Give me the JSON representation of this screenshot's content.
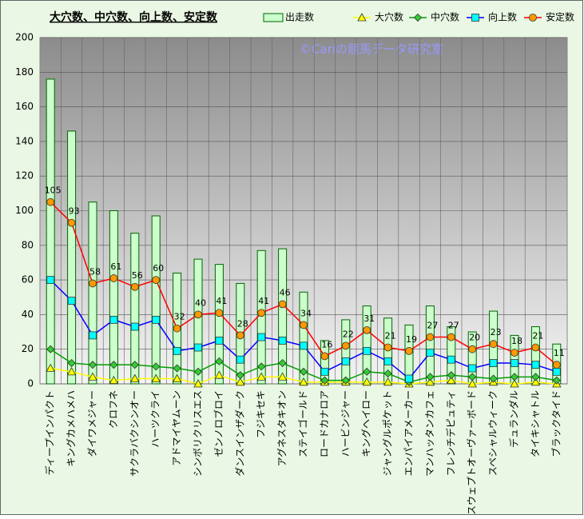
{
  "chart_data": {
    "type": "bar-line",
    "title": "大穴数、中穴数、向上数、安定数",
    "watermark": "©Cariの競馬データ研究室",
    "categories": [
      "ディープインパクト",
      "キングカメハメハ",
      "ダイワメジャー",
      "クロフネ",
      "サクラバクシンオー",
      "ハーツクライ",
      "アドマイヤムーン",
      "シンボリクリスエス",
      "ゼンノロブロイ",
      "ダンスインザダーク",
      "フジキセキ",
      "アグネスタキオン",
      "ステイゴールド",
      "ロードカナロア",
      "ハービンジャー",
      "キングヘイロー",
      "ジャングルポケット",
      "エンパイアメーカー",
      "マンハッタンカフェ",
      "フレンチデピュティ",
      "スウェプトオーヴァーボード",
      "スペシャルウィーク",
      "デュランダル",
      "タイキシャトル",
      "ブラックタイド"
    ],
    "ylim": [
      0,
      200
    ],
    "yticks": [
      0,
      20,
      40,
      60,
      80,
      100,
      120,
      140,
      160,
      180,
      200
    ],
    "grid": true,
    "series": [
      {
        "name": "出走数",
        "type": "bar",
        "color": "#006400",
        "fill": "#ccffcc",
        "values": [
          176,
          146,
          105,
          100,
          87,
          97,
          64,
          72,
          69,
          58,
          77,
          78,
          53,
          25,
          37,
          45,
          38,
          34,
          45,
          33,
          30,
          42,
          28,
          33,
          23
        ]
      },
      {
        "name": "大穴数",
        "type": "line",
        "marker": "triangle",
        "color": "#ffff00",
        "fill": "#ffff00",
        "values": [
          9,
          7,
          4,
          2,
          3,
          3,
          3,
          0,
          5,
          1,
          4,
          4,
          1,
          1,
          1,
          1,
          1,
          0,
          1,
          2,
          0,
          1,
          0,
          1,
          0
        ]
      },
      {
        "name": "中穴数",
        "type": "line",
        "marker": "diamond",
        "color": "#00a000",
        "fill": "#33cc33",
        "values": [
          20,
          12,
          11,
          11,
          11,
          10,
          9,
          7,
          13,
          5,
          10,
          12,
          7,
          2,
          2,
          7,
          6,
          1,
          4,
          5,
          4,
          3,
          4,
          4,
          2
        ]
      },
      {
        "name": "向上数",
        "type": "line",
        "marker": "square",
        "color": "#0000ff",
        "fill": "#00ffff",
        "values": [
          60,
          48,
          28,
          37,
          33,
          37,
          19,
          21,
          25,
          14,
          27,
          25,
          22,
          7,
          13,
          19,
          13,
          3,
          18,
          14,
          9,
          12,
          12,
          11,
          7
        ]
      },
      {
        "name": "安定数",
        "type": "line",
        "marker": "circle",
        "color": "#ff0000",
        "fill": "#ff9900",
        "labels": true,
        "values": [
          105,
          93,
          58,
          61,
          56,
          60,
          32,
          40,
          41,
          28,
          41,
          46,
          34,
          16,
          22,
          31,
          21,
          19,
          27,
          27,
          20,
          23,
          18,
          21,
          11
        ]
      }
    ]
  }
}
